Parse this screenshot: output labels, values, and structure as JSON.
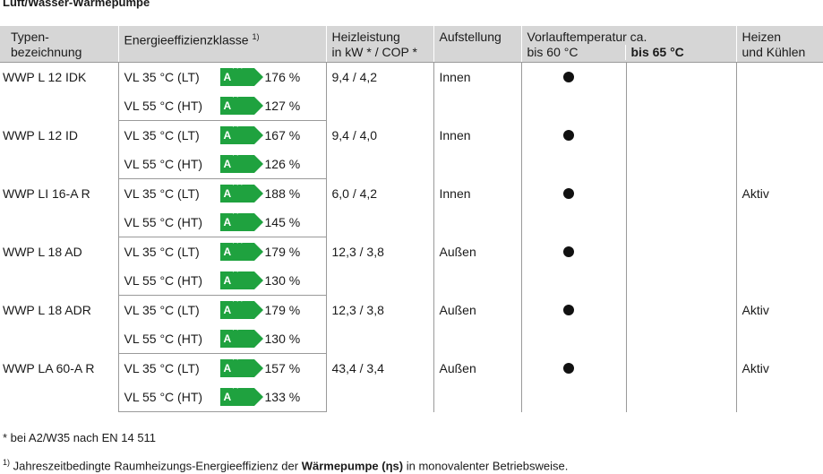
{
  "title": "Luft/Wasser-Wärmepumpe",
  "headers": {
    "typ": [
      "Typen-",
      "bezeichnung"
    ],
    "eff": "Energieeffizienzklasse",
    "eff_sup": "1)",
    "heiz": [
      "Heizleistung",
      "in kW * / COP *"
    ],
    "auf": "Aufstellung",
    "vorl": "Vorlauftemperatur ca.",
    "vorl60": "bis 60 °C",
    "vorl65": "bis 65 °C",
    "hk": [
      "Heizen",
      "und Kühlen"
    ]
  },
  "rows": [
    {
      "type": "WWP L 12 IDK",
      "lt": {
        "label": "VL 35 °C (LT)",
        "badge": "A",
        "plus": "+++",
        "pct": "176 %"
      },
      "ht": {
        "label": "VL 55 °C (HT)",
        "badge": "A",
        "plus": "++",
        "pct": "127 %"
      },
      "heiz": "9,4 / 4,2",
      "auf": "Innen",
      "v60": true,
      "v65": false,
      "hk": ""
    },
    {
      "type": "WWP L 12 ID",
      "lt": {
        "label": "VL 35 °C (LT)",
        "badge": "A",
        "plus": "++",
        "pct": "167 %"
      },
      "ht": {
        "label": "VL 55 °C (HT)",
        "badge": "A",
        "plus": "++",
        "pct": "126 %"
      },
      "heiz": "9,4 / 4,0",
      "auf": "Innen",
      "v60": true,
      "v65": false,
      "hk": ""
    },
    {
      "type": "WWP LI 16-A R",
      "lt": {
        "label": "VL 35 °C (LT)",
        "badge": "A",
        "plus": "+++",
        "pct": "188 %"
      },
      "ht": {
        "label": "VL 55 °C (HT)",
        "badge": "A",
        "plus": "++",
        "pct": "145 %"
      },
      "heiz": "6,0 / 4,2",
      "auf": "Innen",
      "v60": true,
      "v65": false,
      "hk": "Aktiv"
    },
    {
      "type": "WWP L 18 AD",
      "lt": {
        "label": "VL 35 °C (LT)",
        "badge": "A",
        "plus": "+++",
        "pct": "179 %"
      },
      "ht": {
        "label": "VL 55 °C (HT)",
        "badge": "A",
        "plus": "++",
        "pct": "130 %"
      },
      "heiz": "12,3 / 3,8",
      "auf": "Außen",
      "v60": true,
      "v65": false,
      "hk": ""
    },
    {
      "type": "WWP L 18 ADR",
      "lt": {
        "label": "VL 35 °C (LT)",
        "badge": "A",
        "plus": "+++",
        "pct": "179 %"
      },
      "ht": {
        "label": "VL 55 °C (HT)",
        "badge": "A",
        "plus": "++",
        "pct": "130 %"
      },
      "heiz": "12,3 / 3,8",
      "auf": "Außen",
      "v60": true,
      "v65": false,
      "hk": "Aktiv"
    },
    {
      "type": "WWP LA 60-A R",
      "lt": {
        "label": "VL 35 °C (LT)",
        "badge": "A",
        "plus": "++",
        "pct": "157 %"
      },
      "ht": {
        "label": "VL 55 °C (HT)",
        "badge": "A",
        "plus": "++",
        "pct": "133 %"
      },
      "heiz": "43,4 / 3,4",
      "auf": "Außen",
      "v60": true,
      "v65": false,
      "hk": "Aktiv"
    }
  ],
  "badge_color": "#1fa23f",
  "footnotes": {
    "star": "* bei A2/W35 nach EN 14 511",
    "one_sup": "1)",
    "one_pre": " Jahreszeitbedingte Raumheizungs-Energieeffizienz der ",
    "one_bold": "Wärmepumpe (ηs)",
    "one_post": " in monovalenter Betriebsweise."
  }
}
